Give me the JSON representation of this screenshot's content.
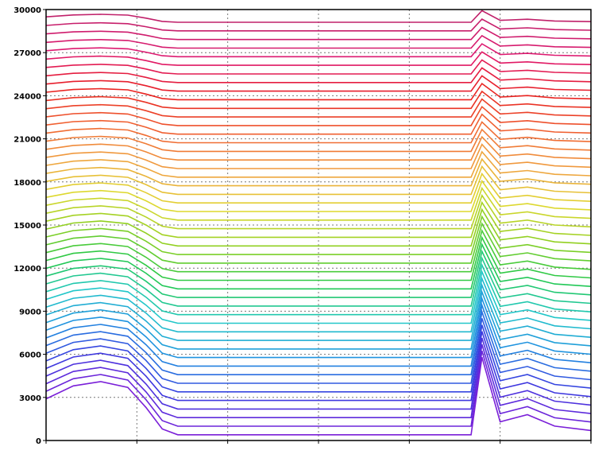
{
  "chart_data": {
    "type": "line",
    "title": "",
    "xlabel": "",
    "ylabel": "",
    "grid": true,
    "legend": "none",
    "xlim": [
      0,
      600
    ],
    "ylim": [
      0,
      30000
    ],
    "x_ticks": [
      0,
      100,
      200,
      300,
      400,
      500,
      600
    ],
    "x_tick_labels": [
      "",
      "",
      "",
      "",
      "",
      "",
      ""
    ],
    "y_ticks": [
      0,
      3000,
      6000,
      9000,
      12000,
      15000,
      18000,
      21000,
      24000,
      27000,
      30000
    ],
    "y_tick_labels": [
      "0",
      "3000",
      "6000",
      "9000",
      "12000",
      "15000",
      "18000",
      "21000",
      "24000",
      "27000",
      "30000"
    ],
    "x": [
      0,
      30,
      60,
      90,
      110,
      128,
      145,
      175,
      200,
      225,
      250,
      280,
      320,
      360,
      395,
      420,
      450,
      468,
      480,
      500,
      530,
      560,
      600
    ],
    "series_count": 49,
    "series_spacing": 600,
    "lowest_series_values": [
      2600,
      3500,
      3800,
      3400,
      2000,
      500,
      100,
      100,
      100,
      100,
      100,
      100,
      100,
      100,
      100,
      100,
      100,
      100,
      5500,
      1000,
      1500,
      700,
      400
    ],
    "color_scale": [
      "#7a1fd8",
      "#3a3ae0",
      "#1f8fe0",
      "#22c8c8",
      "#22c84a",
      "#8fd020",
      "#e0d830",
      "#f0a040",
      "#f06030",
      "#e82020",
      "#e01870",
      "#c0206a"
    ]
  }
}
